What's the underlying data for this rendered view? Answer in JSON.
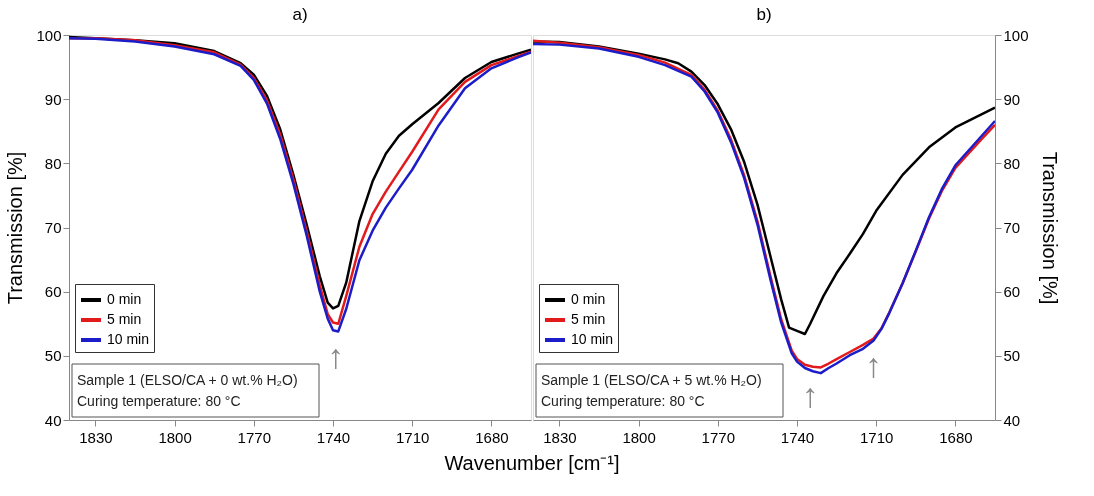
{
  "chart_data": [
    {
      "type": "line",
      "title": "a)",
      "ylabel": "Transmission [%]",
      "xlabel": "Wavenumber [cm⁻¹]",
      "xlim": [
        1840,
        1665
      ],
      "xticks": [
        1830,
        1800,
        1770,
        1740,
        1710,
        1680
      ],
      "ylim": [
        40,
        100
      ],
      "yticks": [
        40,
        50,
        60,
        70,
        80,
        90,
        100
      ],
      "legend": "bottom left",
      "annotations": [
        "Sample 1 (ELSO/CA + 0 wt.% H₂O)",
        "Curing temperature: 80 °C",
        {
          "text": "↑",
          "x": 1739,
          "y": 53.9
        }
      ],
      "x": [
        1840,
        1830,
        1815,
        1800,
        1785,
        1775,
        1770,
        1765,
        1760,
        1755,
        1750,
        1745,
        1742,
        1740,
        1738,
        1735,
        1730,
        1725,
        1720,
        1715,
        1710,
        1700,
        1690,
        1680,
        1670,
        1665
      ],
      "series": [
        {
          "name": "0 min",
          "color": "#000000",
          "values": [
            99.7,
            99.5,
            99.2,
            98.7,
            97.5,
            95.6,
            93.8,
            90.5,
            85.3,
            78.2,
            70.5,
            62.4,
            58.3,
            57.4,
            57.8,
            61.4,
            71.0,
            77.2,
            81.5,
            84.3,
            86.1,
            89.4,
            93.3,
            95.8,
            97.1,
            97.7
          ]
        },
        {
          "name": "5 min",
          "color": "#e31a1c",
          "values": [
            99.5,
            99.5,
            99.2,
            98.4,
            97.3,
            95.4,
            93.3,
            89.8,
            84.5,
            77.5,
            69.5,
            61.0,
            56.5,
            55.2,
            55.0,
            59.3,
            67.0,
            72.1,
            75.6,
            78.7,
            81.8,
            88.4,
            92.7,
            95.3,
            96.7,
            97.4
          ]
        },
        {
          "name": "10 min",
          "color": "#1c1cc8",
          "values": [
            99.5,
            99.4,
            99.0,
            98.2,
            97.0,
            95.2,
            93.0,
            89.3,
            83.8,
            76.8,
            68.8,
            60.0,
            55.8,
            54.0,
            53.8,
            57.3,
            64.9,
            69.5,
            73.1,
            76.1,
            79.0,
            85.9,
            91.7,
            94.8,
            96.5,
            97.3
          ]
        }
      ]
    },
    {
      "type": "line",
      "title": "b)",
      "ylabel": "Transmission [%]",
      "xlim": [
        1840,
        1665
      ],
      "xticks": [
        1830,
        1800,
        1770,
        1740,
        1710,
        1680
      ],
      "ylim": [
        40,
        100
      ],
      "yticks": [
        40,
        50,
        60,
        70,
        80,
        90,
        100
      ],
      "legend": "bottom left",
      "annotations": [
        "Sample 1 (ELSO/CA + 5 wt.% H₂O)",
        "Curing temperature: 80 °C",
        {
          "text": "↑",
          "x": 1735,
          "y": 47.8
        },
        {
          "text": "↑",
          "x": 1711,
          "y": 52.4
        }
      ],
      "series": [
        {
          "name": "0 min",
          "color": "#000000",
          "x": [
            1840,
            1830,
            1815,
            1800,
            1790,
            1785,
            1780,
            1775,
            1770,
            1765,
            1760,
            1755,
            1750,
            1746,
            1743,
            1740,
            1737,
            1735,
            1730,
            1725,
            1720,
            1715,
            1710,
            1700,
            1690,
            1680,
            1665
          ],
          "values": [
            99.0,
            98.9,
            98.2,
            97.1,
            96.2,
            95.6,
            94.3,
            92.2,
            89.2,
            85.3,
            80.2,
            73.6,
            65.4,
            58.8,
            54.4,
            53.9,
            53.4,
            55.0,
            59.3,
            62.9,
            65.9,
            69.0,
            72.6,
            78.2,
            82.5,
            85.6,
            88.7
          ]
        },
        {
          "name": "5 min",
          "color": "#e31a1c",
          "x": [
            1840,
            1830,
            1815,
            1800,
            1790,
            1780,
            1775,
            1770,
            1765,
            1760,
            1755,
            1750,
            1746,
            1742,
            1740,
            1737,
            1734,
            1731,
            1728,
            1725,
            1720,
            1715,
            1711,
            1708,
            1705,
            1700,
            1695,
            1690,
            1685,
            1680,
            1670,
            1665
          ],
          "values": [
            99.1,
            98.8,
            98.1,
            96.9,
            95.7,
            93.8,
            91.5,
            88.2,
            83.7,
            78.1,
            71.0,
            62.3,
            55.7,
            50.8,
            49.5,
            48.6,
            48.3,
            48.2,
            48.8,
            49.5,
            50.6,
            51.7,
            52.7,
            54.3,
            56.8,
            61.3,
            66.3,
            71.4,
            75.8,
            79.3,
            83.8,
            86.0
          ]
        },
        {
          "name": "10 min",
          "color": "#1c1cc8",
          "x": [
            1840,
            1830,
            1815,
            1800,
            1790,
            1780,
            1775,
            1770,
            1765,
            1760,
            1755,
            1750,
            1746,
            1742,
            1740,
            1737,
            1734,
            1731,
            1728,
            1725,
            1720,
            1715,
            1711,
            1708,
            1705,
            1700,
            1695,
            1690,
            1685,
            1680,
            1670,
            1665
          ],
          "values": [
            98.6,
            98.5,
            97.9,
            96.6,
            95.3,
            93.5,
            91.2,
            87.9,
            83.3,
            77.7,
            70.5,
            61.8,
            55.2,
            50.4,
            49.1,
            48.1,
            47.6,
            47.3,
            48.1,
            48.8,
            50.1,
            51.1,
            52.4,
            54.2,
            56.7,
            61.3,
            66.4,
            71.6,
            76.1,
            79.7,
            84.3,
            86.6
          ]
        }
      ]
    }
  ]
}
